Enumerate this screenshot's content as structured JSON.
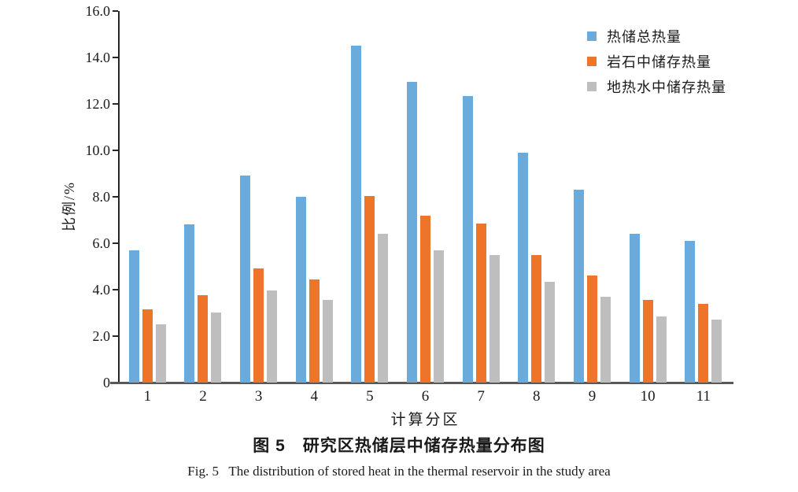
{
  "figure": {
    "caption_zh": "图 5　研究区热储层中储存热量分布图",
    "caption_en": "Fig. 5   The distribution of stored heat in the thermal reservoir in the study area"
  },
  "chart_data": {
    "type": "bar",
    "title": "",
    "xlabel": "计算分区",
    "ylabel": "比例/%",
    "ylim": [
      0,
      16
    ],
    "ytick_step": 2,
    "ytick_labels": [
      "16.0",
      "14.0",
      "12.0",
      "10.0",
      "8.0",
      "6.0",
      "4.0",
      "2.0",
      "0"
    ],
    "grid": false,
    "legend_position": "top-right",
    "categories": [
      "1",
      "2",
      "3",
      "4",
      "5",
      "6",
      "7",
      "8",
      "9",
      "10",
      "11"
    ],
    "series": [
      {
        "name": "热储总热量",
        "color": "#6AABDC",
        "values": [
          5.7,
          6.8,
          8.9,
          8.0,
          14.5,
          12.95,
          12.35,
          9.9,
          8.3,
          6.4,
          6.1
        ]
      },
      {
        "name": "岩石中储存热量",
        "color": "#ED7428",
        "values": [
          3.15,
          3.75,
          4.9,
          4.45,
          8.05,
          7.2,
          6.85,
          5.5,
          4.6,
          3.55,
          3.4
        ]
      },
      {
        "name": "地热水中储存热量",
        "color": "#BEBEBE",
        "values": [
          2.5,
          3.0,
          3.95,
          3.55,
          6.4,
          5.7,
          5.5,
          4.35,
          3.7,
          2.85,
          2.7
        ]
      }
    ],
    "axis_color": "#595959",
    "tick_color": "#262626"
  }
}
